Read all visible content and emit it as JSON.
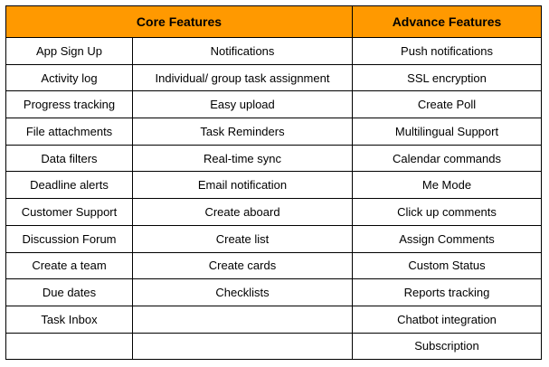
{
  "colors": {
    "header_background": "#FF9900",
    "border": "#000000",
    "text": "#000000"
  },
  "header": {
    "core": "Core Features",
    "advance": "Advance Features"
  },
  "rows": [
    [
      "App Sign Up",
      "Notifications",
      "Push notifications"
    ],
    [
      "Activity log",
      "Individual/ group task assignment",
      "SSL encryption"
    ],
    [
      "Progress tracking",
      "Easy upload",
      "Create Poll"
    ],
    [
      "File attachments",
      "Task Reminders",
      "Multilingual Support"
    ],
    [
      "Data filters",
      "Real-time sync",
      "Calendar commands"
    ],
    [
      "Deadline alerts",
      "Email notification",
      "Me Mode"
    ],
    [
      "Customer Support",
      "Create aboard",
      "Click up comments"
    ],
    [
      "Discussion Forum",
      "Create list",
      "Assign Comments"
    ],
    [
      "Create a team",
      "Create cards",
      "Custom Status"
    ],
    [
      "Due dates",
      "Checklists",
      "Reports tracking"
    ],
    [
      "Task Inbox",
      "",
      "Chatbot integration"
    ],
    [
      "",
      "",
      "Subscription"
    ]
  ]
}
